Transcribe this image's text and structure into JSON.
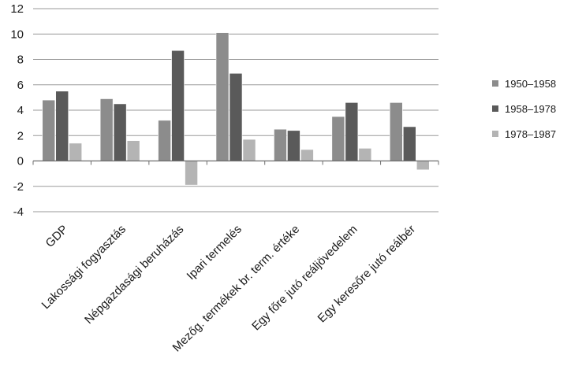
{
  "chart_data": {
    "type": "bar",
    "categories": [
      "GDP",
      "Lakossági fogyasztás",
      "Népgazdasági beruházás",
      "Ipari termelés",
      "Mezőg. termékek br. term. értéke",
      "Egy főre jutó reáljövedelem",
      "Egy keresőre jutó reálbér"
    ],
    "series": [
      {
        "name": "1950–1958",
        "color": "#8c8c8c",
        "values": [
          4.8,
          4.9,
          3.2,
          10.1,
          2.5,
          3.5,
          4.6
        ]
      },
      {
        "name": "1958–1978",
        "color": "#5a5a5a",
        "values": [
          5.5,
          4.5,
          8.7,
          6.9,
          2.4,
          4.6,
          2.7
        ]
      },
      {
        "name": "1978–1987",
        "color": "#b4b4b4",
        "values": [
          1.4,
          1.6,
          -1.9,
          1.7,
          0.9,
          1.0,
          -0.7
        ]
      }
    ],
    "ylim": [
      -4,
      12
    ],
    "yticks": [
      -4,
      -2,
      0,
      2,
      4,
      6,
      8,
      10,
      12
    ],
    "grid": true,
    "legend_position": "right",
    "title": "",
    "xlabel": "",
    "ylabel": ""
  }
}
